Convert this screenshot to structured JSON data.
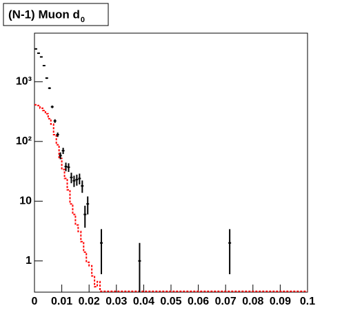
{
  "chart_data": {
    "type": "scatter",
    "title": "(N-1) Muon d",
    "title_subscript": "0",
    "xlim": [
      0,
      0.1
    ],
    "xticks": [
      0,
      0.01,
      0.02,
      0.03,
      0.04,
      0.05,
      0.06,
      0.07,
      0.08,
      0.09,
      0.1
    ],
    "ylim": [
      0.3,
      6500
    ],
    "yticks": [
      1,
      10,
      {
        "value": 100,
        "label": "10²"
      },
      {
        "value": 1000,
        "label": "10³"
      }
    ],
    "log_y": true,
    "layers": [
      {
        "type": "histogram",
        "color": "#ff0000",
        "bins": [
          0,
          0.001,
          0.002,
          0.003,
          0.004,
          0.005,
          0.006,
          0.007,
          0.008,
          0.009,
          0.01,
          0.011,
          0.012,
          0.013,
          0.014,
          0.015,
          0.016,
          0.017,
          0.018,
          0.019,
          0.02,
          0.021,
          0.022,
          0.023,
          0.024,
          0.1
        ],
        "values": [
          410,
          400,
          360,
          330,
          290,
          240,
          195,
          130,
          88,
          52,
          34,
          24,
          15.5,
          9,
          6,
          4,
          3.1,
          2.1,
          1.4,
          0.95,
          0.83,
          0.56,
          0.37,
          0.45,
          0.31
        ]
      },
      {
        "type": "scatter",
        "color": "#000000",
        "x": [
          0.0005,
          0.0015,
          0.0025,
          0.0035,
          0.0045,
          0.0055,
          0.0065,
          0.0075,
          0.0085,
          0.0095,
          0.0105,
          0.0115,
          0.0125,
          0.0135,
          0.0145,
          0.0155,
          0.0165,
          0.0175,
          0.0185,
          0.0195,
          0.0245,
          0.0385,
          0.0715
        ],
        "values": [
          3540,
          3000,
          2600,
          1860,
          1150,
          780,
          380,
          220,
          130,
          58,
          70,
          38,
          37,
          25,
          22,
          23,
          24,
          18,
          6,
          9,
          2,
          1,
          2
        ],
        "errors": [
          60,
          55,
          51,
          43,
          34,
          28,
          19,
          15,
          11,
          7.6,
          8.4,
          6.2,
          6.1,
          5,
          4.7,
          4.8,
          4.9,
          4.2,
          2.4,
          3,
          1.4,
          1,
          1.4
        ]
      }
    ]
  }
}
